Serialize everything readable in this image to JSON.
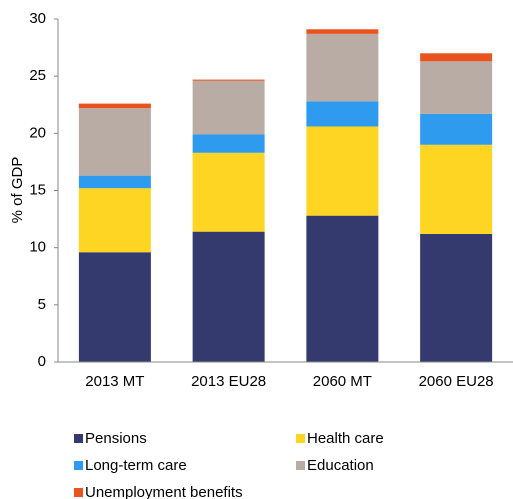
{
  "chart_data": {
    "type": "stacked_bar",
    "y_label": "% of GDP",
    "categories": [
      "2013 MT",
      "2013 EU28",
      "2060 MT",
      "2060 EU28"
    ],
    "series": [
      {
        "name": "Pensions",
        "color": "#353a6e",
        "values": [
          9.6,
          11.4,
          12.8,
          11.2
        ]
      },
      {
        "name": "Health care",
        "color": "#fdd522",
        "values": [
          5.6,
          6.9,
          7.8,
          7.8
        ]
      },
      {
        "name": "Long-term care",
        "color": "#2f9bee",
        "values": [
          1.1,
          1.6,
          2.2,
          2.7
        ]
      },
      {
        "name": "Education",
        "color": "#b8aca4",
        "values": [
          5.9,
          4.7,
          5.9,
          4.6
        ]
      },
      {
        "name": "Unemployment benefits",
        "color": "#e9531f",
        "values": [
          0.4,
          0.1,
          0.4,
          0.7
        ]
      }
    ],
    "ylim": [
      0,
      30
    ],
    "yticks": [
      0,
      5,
      10,
      15,
      20,
      25,
      30
    ],
    "grid": false,
    "legend": "bottom"
  }
}
